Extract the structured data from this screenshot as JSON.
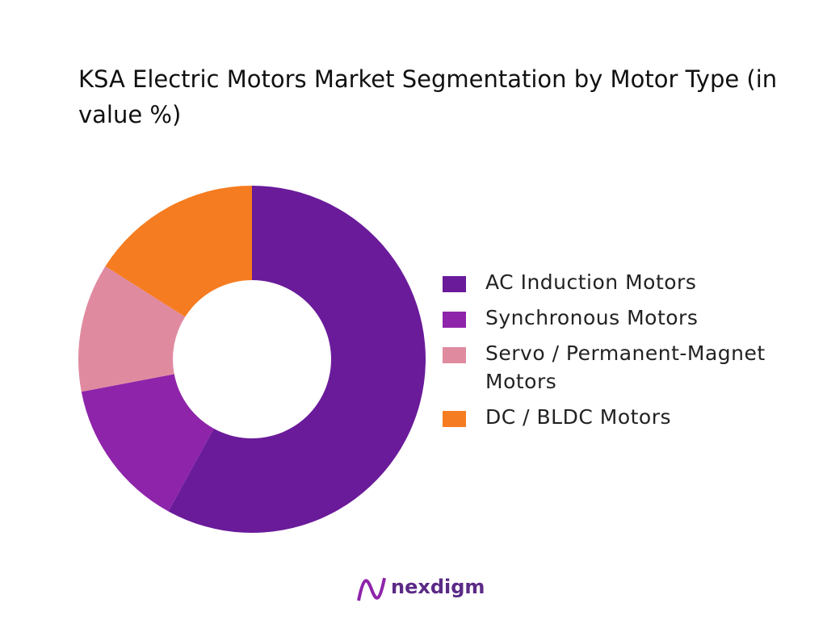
{
  "chart_data": {
    "type": "pie",
    "title": "KSA Electric Motors Market Segmentation by Motor Type (in value %)",
    "categories": [
      "AC Induction Motors",
      "Synchronous Motors",
      "Servo / Permanent-Magnet Motors",
      "DC / BLDC Motors"
    ],
    "values": [
      58,
      14,
      12,
      16
    ],
    "colors": [
      "#6a1b9a",
      "#8e24aa",
      "#e08aa0",
      "#f57c20"
    ],
    "legend": "right"
  },
  "brand": "nexdigm"
}
